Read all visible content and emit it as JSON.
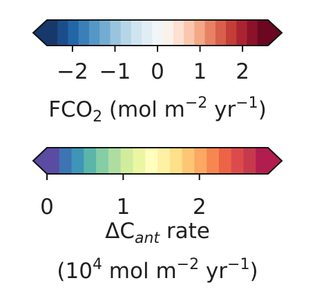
{
  "chart_data": [
    {
      "type": "colorbar",
      "name": "FCO2 colorbar",
      "orientation": "horizontal",
      "extend": "both",
      "range": [
        -2.6,
        2.6
      ],
      "ticks": [
        -2,
        -1,
        0,
        1,
        2
      ],
      "tick_labels": [
        "−2",
        "−1",
        "0",
        "1",
        "2"
      ],
      "colormap": "RdBu_r",
      "label": {
        "base": "FCO",
        "sub": "2",
        "paren_open": " (mol m",
        "sup1": "−2",
        "mid": " yr",
        "sup2": "−1",
        "paren_close": ")"
      },
      "colors": [
        "#16386a",
        "#1c4d8b",
        "#2266a8",
        "#3b7fb8",
        "#5497c6",
        "#74acd1",
        "#98c4de",
        "#b6d6e8",
        "#cfe4f0",
        "#e1edf5",
        "#f2f5f8",
        "#fbf1ec",
        "#fde0d2",
        "#f9c7ae",
        "#f4a886",
        "#e78364",
        "#d75f4c",
        "#c43e38",
        "#ab2330",
        "#8b1229",
        "#6b0721"
      ]
    },
    {
      "type": "colorbar",
      "name": "ΔCant rate colorbar",
      "orientation": "horizontal",
      "extend": "both",
      "range": [
        0,
        2.9
      ],
      "ticks": [
        0,
        1,
        2
      ],
      "tick_labels": [
        "0",
        "1",
        "2"
      ],
      "colormap": "Spectral_r",
      "label": {
        "delta": "ΔC",
        "sub": "ant",
        "rest": " rate",
        "line2_open": "(10",
        "sup0": "4",
        "line2_mid": " mol m",
        "sup1": "−2",
        "line2_mid2": " yr",
        "sup2": "−1",
        "line2_close": ")"
      },
      "colors": [
        "#5b4ba2",
        "#3e74b3",
        "#3d96b8",
        "#5cb5a9",
        "#85cda4",
        "#aedda2",
        "#d0ec9d",
        "#ebf6a3",
        "#fefebd",
        "#fef1a4",
        "#fedf8a",
        "#fdc675",
        "#fca862",
        "#f88651",
        "#ed6345",
        "#dc4a4c",
        "#c63a4c",
        "#b11d4f"
      ]
    }
  ]
}
